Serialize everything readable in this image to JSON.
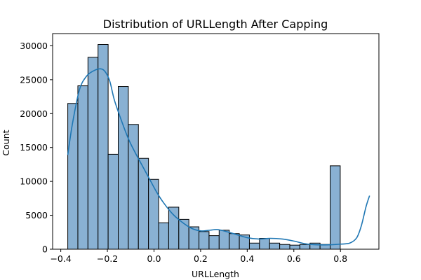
{
  "chart_data": {
    "type": "bar",
    "title": "Distribution of URLLength After Capping",
    "xlabel": "URLLength",
    "ylabel": "Count",
    "xlim": [
      -0.435,
      0.965
    ],
    "ylim": [
      0,
      31800
    ],
    "xticks": [
      -0.4,
      -0.2,
      0.0,
      0.2,
      0.4,
      0.6,
      0.8
    ],
    "xtick_labels": [
      "−0.4",
      "−0.2",
      "0.0",
      "0.2",
      "0.4",
      "0.6",
      "0.8"
    ],
    "yticks": [
      0,
      5000,
      10000,
      15000,
      20000,
      25000,
      30000
    ],
    "ytick_labels": [
      "0",
      "5000",
      "10000",
      "15000",
      "20000",
      "25000",
      "30000"
    ],
    "grid": false,
    "bin_start": -0.37,
    "bin_width": 0.0433,
    "values": [
      21500,
      24100,
      28300,
      30200,
      14000,
      24000,
      18400,
      13400,
      10300,
      3900,
      6200,
      4400,
      3300,
      2600,
      2000,
      2800,
      2300,
      2100,
      900,
      1600,
      900,
      700,
      600,
      700,
      900,
      700,
      12300
    ],
    "kde": {
      "x": [
        -0.37,
        -0.35,
        -0.32,
        -0.29,
        -0.26,
        -0.23,
        -0.21,
        -0.19,
        -0.17,
        -0.14,
        -0.11,
        -0.08,
        -0.05,
        -0.02,
        0.01,
        0.04,
        0.08,
        0.12,
        0.16,
        0.2,
        0.24,
        0.27,
        0.3,
        0.35,
        0.4,
        0.45,
        0.5,
        0.55,
        0.6,
        0.65,
        0.7,
        0.75,
        0.8,
        0.84,
        0.87,
        0.89,
        0.91,
        0.925
      ],
      "y": [
        13900,
        18500,
        23500,
        25500,
        26300,
        26600,
        26200,
        24800,
        22000,
        19000,
        16300,
        14200,
        12300,
        10400,
        8500,
        6900,
        5200,
        4000,
        3100,
        2700,
        2800,
        2900,
        2700,
        2200,
        1700,
        1500,
        1600,
        1500,
        1200,
        800,
        650,
        650,
        750,
        900,
        1700,
        3500,
        6300,
        7900
      ]
    },
    "colors": {
      "bar_fill": "#89b1d3",
      "bar_edge": "#000000",
      "kde_line": "#1f77b4"
    }
  }
}
